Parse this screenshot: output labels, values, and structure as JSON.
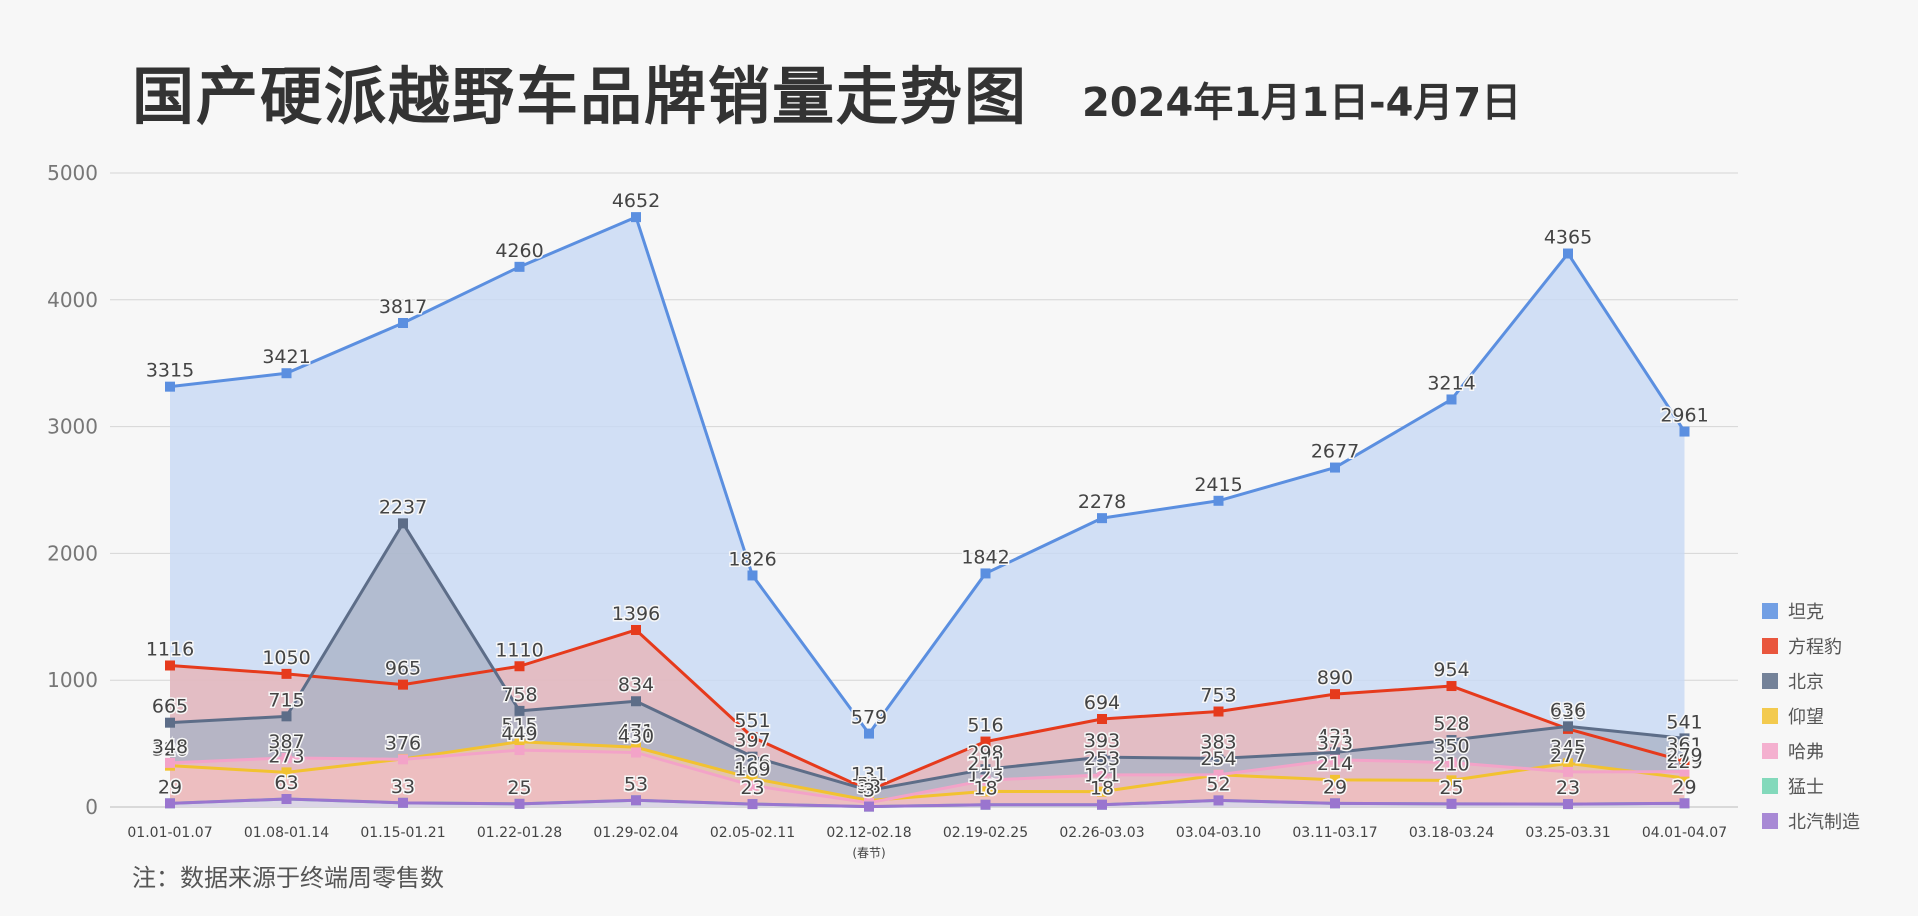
{
  "title": "国产硬派越野车品牌销量走势图",
  "subtitle": "2024年1月1日-4月7日",
  "note": "注：数据来源于终端周零售数",
  "chart_data": {
    "type": "area",
    "title": "国产硬派越野车品牌销量走势图",
    "subtitle": "2024年1月1日-4月7日",
    "xlabel": "",
    "ylabel": "",
    "ylim": [
      0,
      5000
    ],
    "yticks": [
      0,
      1000,
      2000,
      3000,
      4000,
      5000
    ],
    "grid": true,
    "legend_position": "right",
    "categories": [
      "01.01-01.07",
      "01.08-01.14",
      "01.15-01.21",
      "01.22-01.28",
      "01.29-02.04",
      "02.05-02.11",
      "02.12-02.18",
      "02.19-02.25",
      "02.26-03.03",
      "03.04-03.10",
      "03.11-03.17",
      "03.18-03.24",
      "03.25-03.31",
      "04.01-04.07"
    ],
    "category_notes": {
      "6": "(春节)"
    },
    "series": [
      {
        "name": "坦克",
        "color": "#5b8fe0",
        "fill": "#c6d8f5",
        "values": [
          3315,
          3421,
          3817,
          4260,
          4652,
          1826,
          579,
          1842,
          2278,
          2415,
          2677,
          3214,
          4365,
          2961
        ]
      },
      {
        "name": "方程豹",
        "color": "#e63a1c",
        "fill": "#e8b3b6",
        "values": [
          1116,
          1050,
          965,
          1110,
          1396,
          551,
          131,
          516,
          694,
          753,
          890,
          954,
          616,
          361
        ]
      },
      {
        "name": "北京",
        "color": "#5d6d88",
        "fill": "#a9b2c5",
        "values": [
          665,
          715,
          2237,
          758,
          834,
          397,
          131,
          298,
          393,
          383,
          431,
          528,
          636,
          541
        ]
      },
      {
        "name": "仰望",
        "color": "#f2c230",
        "fill": "#efc8a4",
        "values": [
          326,
          273,
          379,
          515,
          471,
          226,
          51,
          123,
          121,
          254,
          214,
          210,
          345,
          229
        ]
      },
      {
        "name": "哈弗",
        "color": "#f3a3c8",
        "fill": "#f0bcc5",
        "values": [
          348,
          387,
          376,
          449,
          430,
          169,
          33,
          211,
          253,
          254,
          373,
          350,
          277,
          279
        ]
      },
      {
        "name": "猛士",
        "color": "#6ed3b0",
        "fill": "#cfe9dc",
        "values": [
          29,
          63,
          33,
          25,
          53,
          23,
          3,
          18,
          18,
          52,
          29,
          25,
          23,
          29
        ]
      },
      {
        "name": "北汽制造",
        "color": "#9a75cf",
        "fill": "#dcd2ea",
        "values": [
          29,
          63,
          33,
          25,
          53,
          23,
          3,
          18,
          18,
          52,
          29,
          25,
          23,
          29
        ]
      }
    ]
  }
}
